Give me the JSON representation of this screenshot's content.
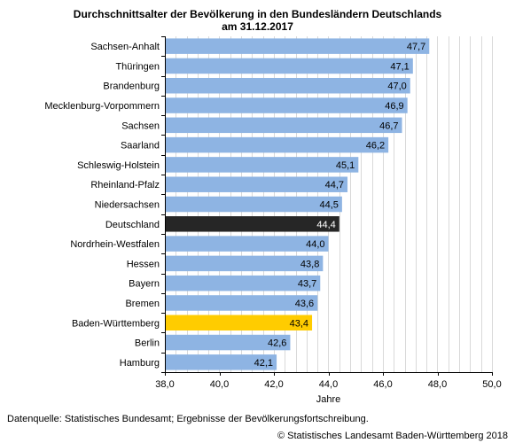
{
  "title_line1": "Durchschnittsalter der Bevölkerung in den Bundesländern Deutschlands",
  "title_line2": "am 31.12.2017",
  "source": "Datenquelle: Statistisches Bundesamt; Ergebnisse der Bevölkerungsfortschreibung.",
  "copyright": "© Statistisches Landesamt Baden-Württemberg 2018",
  "colors": {
    "bar_default": "#8eb4e3",
    "bar_germany": "#262626",
    "bar_bw": "#ffcc00",
    "grid": "#d9d9d9"
  },
  "chart_data": {
    "type": "bar",
    "orientation": "horizontal",
    "categories": [
      "Sachsen-Anhalt",
      "Thüringen",
      "Brandenburg",
      "Mecklenburg-Vorpommern",
      "Sachsen",
      "Saarland",
      "Schleswig-Holstein",
      "Rheinland-Pfalz",
      "Niedersachsen",
      "Deutschland",
      "Nordrhein-Westfalen",
      "Hessen",
      "Bayern",
      "Bremen",
      "Baden-Württemberg",
      "Berlin",
      "Hamburg"
    ],
    "values": [
      47.7,
      47.1,
      47.0,
      46.9,
      46.7,
      46.2,
      45.1,
      44.7,
      44.5,
      44.4,
      44.0,
      43.8,
      43.7,
      43.6,
      43.4,
      42.6,
      42.1
    ],
    "value_labels": [
      "47,7",
      "47,1",
      "47,0",
      "46,9",
      "46,7",
      "46,2",
      "45,1",
      "44,7",
      "44,5",
      "44,4",
      "44,0",
      "43,8",
      "43,7",
      "43,6",
      "43,4",
      "42,6",
      "42,1"
    ],
    "highlight": {
      "Deutschland": "bar_germany",
      "Baden-Württemberg": "bar_bw"
    },
    "xlim": [
      38,
      50
    ],
    "xticks": [
      38,
      40,
      42,
      44,
      46,
      48,
      50
    ],
    "xtick_labels": [
      "38,0",
      "40,0",
      "42,0",
      "44,0",
      "46,0",
      "48,0",
      "50,0"
    ],
    "xlabel": "Jahre",
    "grid": true,
    "minor_gridlines_per_major": 4
  }
}
